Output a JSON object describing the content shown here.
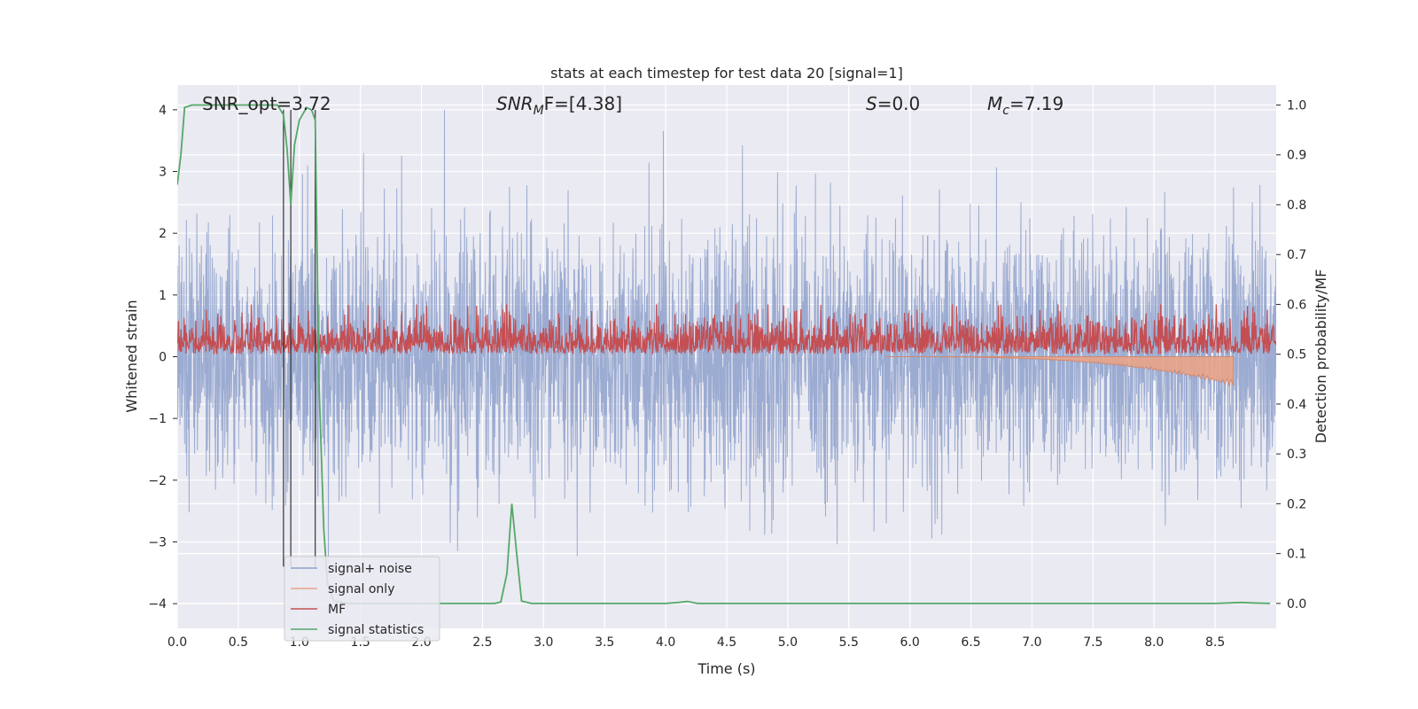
{
  "chart_data": {
    "type": "line",
    "title": "stats at each timestep for test data 20 [signal=1]",
    "xlabel": "Time (s)",
    "ylabel_left": "Whitened strain",
    "ylabel_right": "Detection probability/MF",
    "xlim": [
      0.0,
      9.0
    ],
    "ylim_left": [
      -4.4,
      4.4
    ],
    "ylim_right": [
      -0.05,
      1.04
    ],
    "x_ticks": [
      "0.0",
      "0.5",
      "1.0",
      "1.5",
      "2.0",
      "2.5",
      "3.0",
      "3.5",
      "4.0",
      "4.5",
      "5.0",
      "5.5",
      "6.0",
      "6.5",
      "7.0",
      "7.5",
      "8.0",
      "8.5"
    ],
    "y_ticks_left": [
      "4",
      "3",
      "2",
      "1",
      "0",
      "−1",
      "−2",
      "−3",
      "−4"
    ],
    "y_ticks_right": [
      "1.0",
      "0.9",
      "0.8",
      "0.7",
      "0.6",
      "0.5",
      "0.4",
      "0.3",
      "0.2",
      "0.1",
      "0.0"
    ],
    "grid": true,
    "legend_position": "lower-left",
    "annotations": {
      "snr_opt": "SNR_opt=3.72",
      "snr_mf_prefix": "SNR",
      "snr_mf_sub": "M",
      "snr_mf_suffix": "F=[4.38]",
      "s_label": "S",
      "s_value": "=0.0",
      "mc_label": "M",
      "mc_sub": "c",
      "mc_value": "=7.19"
    },
    "vertical_lines_x": [
      0.87,
      0.93,
      1.13
    ],
    "series": [
      {
        "name": "signal+ noise",
        "color": "#8da0cb",
        "kind": "noise",
        "amplitude_std": 1.05
      },
      {
        "name": "signal only",
        "color": "#e8a387",
        "kind": "chirp",
        "x_start": 5.8,
        "x_end": 8.65,
        "min_value": -0.48
      },
      {
        "name": "MF",
        "color": "#c44e52",
        "kind": "mf",
        "baseline": 0.5,
        "mean_above": 0.035
      },
      {
        "name": "signal statistics",
        "color": "#55a868",
        "kind": "prob",
        "x": [
          0.0,
          0.03,
          0.06,
          0.12,
          0.3,
          0.5,
          0.7,
          0.82,
          0.87,
          0.9,
          0.93,
          0.96,
          1.0,
          1.06,
          1.1,
          1.13,
          1.16,
          1.2,
          1.23,
          1.28,
          1.4,
          1.8,
          2.2,
          2.6,
          2.65,
          2.7,
          2.74,
          2.78,
          2.82,
          2.9,
          3.5,
          4.0,
          4.1,
          4.18,
          4.26,
          4.5,
          5.0,
          6.0,
          7.0,
          8.0,
          8.5,
          8.72,
          8.8,
          8.95
        ],
        "y": [
          0.84,
          0.9,
          0.995,
          1.0,
          1.0,
          1.0,
          1.0,
          1.0,
          0.98,
          0.91,
          0.8,
          0.92,
          0.97,
          0.995,
          0.99,
          0.97,
          0.45,
          0.15,
          0.04,
          0.005,
          0.0,
          0.0,
          0.0,
          0.0,
          0.003,
          0.06,
          0.2,
          0.1,
          0.005,
          0.0,
          0.0,
          0.0,
          0.002,
          0.004,
          0.0,
          0.0,
          0.0,
          0.0,
          0.0,
          0.0,
          0.0,
          0.002,
          0.001,
          0.0
        ]
      }
    ]
  }
}
